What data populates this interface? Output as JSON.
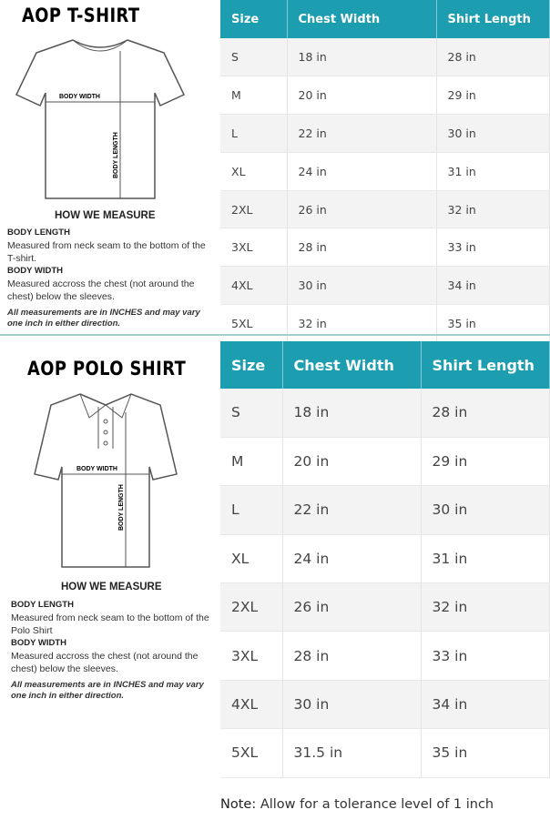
{
  "columns": [
    "Size",
    "Chest Width",
    "Shirt Length"
  ],
  "tshirt": {
    "title": "AOP T-SHIRT",
    "diagram_labels": {
      "width": "BODY WIDTH",
      "length": "BODY LENGTH"
    },
    "how": "HOW WE MEASURE",
    "length_h": "BODY LENGTH",
    "length_t": "Measured from neck seam to the bottom of the T-shirt.",
    "width_h": "BODY WIDTH",
    "width_t": "Measured accross the chest (not around the chest) below the sleeves.",
    "note": "All measurements are in INCHES and may vary one inch in either direction.",
    "rows": [
      [
        "S",
        "18 in",
        "28 in"
      ],
      [
        "M",
        "20 in",
        "29 in"
      ],
      [
        "L",
        "22 in",
        "30 in"
      ],
      [
        "XL",
        "24 in",
        "31 in"
      ],
      [
        "2XL",
        "26 in",
        "32 in"
      ],
      [
        "3XL",
        "28 in",
        "33 in"
      ],
      [
        "4XL",
        "30 in",
        "34 in"
      ],
      [
        "5XL",
        "32 in",
        "35 in"
      ]
    ]
  },
  "polo": {
    "title": "AOP POLO SHIRT",
    "diagram_labels": {
      "width": "BODY WIDTH",
      "length": "BODY LENGTH"
    },
    "how": "HOW WE MEASURE",
    "length_h": "BODY LENGTH",
    "length_t": "Measured from neck seam to the bottom of the Polo Shirt",
    "width_h": "BODY WIDTH",
    "width_t": "Measured accross the chest (not around the chest) below the sleeves.",
    "note": "All measurements are in INCHES and may vary one inch in either direction.",
    "rows": [
      [
        "S",
        "18 in",
        "28 in"
      ],
      [
        "M",
        "20 in",
        "29 in"
      ],
      [
        "L",
        "22 in",
        "30 in"
      ],
      [
        "XL",
        "24 in",
        "31 in"
      ],
      [
        "2XL",
        "26 in",
        "32 in"
      ],
      [
        "3XL",
        "28 in",
        "33 in"
      ],
      [
        "4XL",
        "30 in",
        "34 in"
      ],
      [
        "5XL",
        "31.5 in",
        "35 in"
      ]
    ]
  },
  "footer": {
    "label": "Note:",
    "text": " Allow for a tolerance level of 1 inch"
  },
  "colors": {
    "header": "#1c9eb0"
  }
}
